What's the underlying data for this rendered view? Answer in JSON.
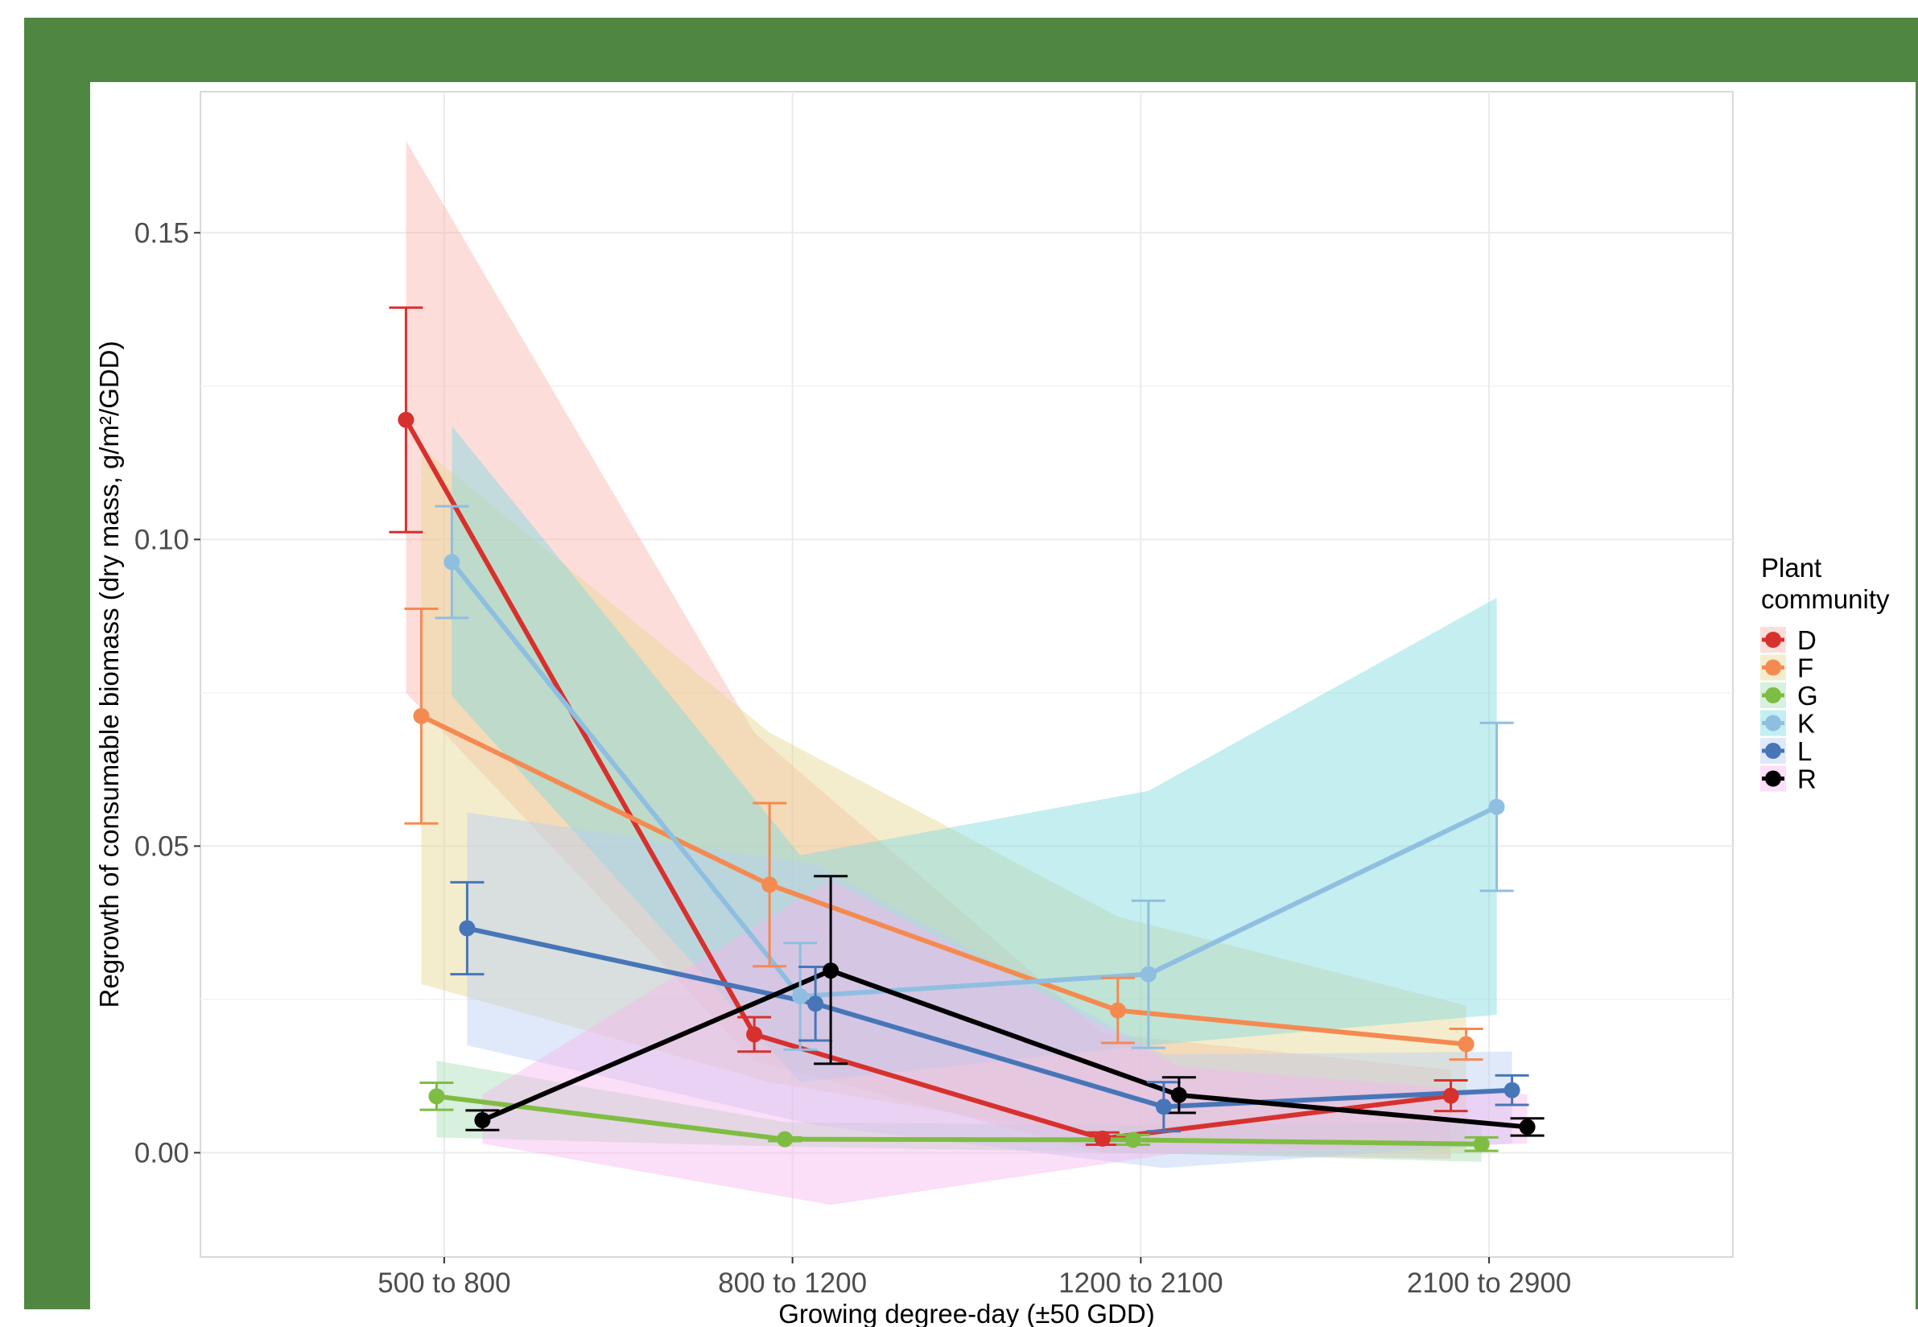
{
  "colors": {
    "frame": "#4f8742",
    "grid": "#ebebeb",
    "text": "#4d4d4d",
    "series": {
      "D": "#d7312e",
      "F": "#f58a51",
      "G": "#7fbd42",
      "K": "#8fbfe0",
      "L": "#4776b8",
      "R": "#000000"
    },
    "bands": {
      "D": "#fbb4ae",
      "F": "#e6d691",
      "G": "#a8ddb5",
      "K": "#7fd9e0",
      "L": "#b8cff5",
      "R": "#f7b6ee"
    }
  },
  "chart_data": {
    "type": "line",
    "xlabel": "Growing degree-day (±50 GDD)",
    "ylabel": "Regrowth of consumable biomass (dry mass, g/m²/GDD)",
    "categories": [
      "500 to 800",
      "800 to 1200",
      "1200 to 2100",
      "2100 to 2900"
    ],
    "ylim": [
      -0.017,
      0.173
    ],
    "yticks": [
      0.0,
      0.05,
      0.1,
      0.15
    ],
    "ytick_labels": [
      "0.00",
      "0.05",
      "0.10",
      "0.15"
    ],
    "grid": true,
    "legend": {
      "title": "Plant community",
      "position": "right"
    },
    "series": [
      {
        "name": "D",
        "values": [
          0.1195,
          0.0193,
          0.0023,
          0.0093
        ],
        "err_low": [
          0.1012,
          0.0165,
          0.0013,
          0.0068
        ],
        "err_high": [
          0.1378,
          0.0221,
          0.0033,
          0.0118
        ],
        "band_low": [
          0.075,
          0.015,
          0.0,
          -0.001
        ],
        "band_high": [
          0.165,
          0.0685,
          0.0195,
          0.0135
        ]
      },
      {
        "name": "F",
        "values": [
          0.0712,
          0.0437,
          0.0232,
          0.0177
        ],
        "err_low": [
          0.0537,
          0.0304,
          0.0179,
          0.0152
        ],
        "err_high": [
          0.0887,
          0.057,
          0.0285,
          0.0202
        ],
        "band_low": [
          0.0275,
          0.0115,
          0.002,
          0.0
        ],
        "band_high": [
          0.115,
          0.0685,
          0.0385,
          0.024
        ]
      },
      {
        "name": "G",
        "values": [
          0.0092,
          0.0022,
          0.0021,
          0.0014
        ],
        "err_low": [
          0.007,
          0.0019,
          0.0013,
          0.0003
        ],
        "err_high": [
          0.0114,
          0.0025,
          0.0029,
          0.0025
        ],
        "band_low": [
          0.0025,
          0.001,
          0.0,
          -0.0015
        ],
        "band_high": [
          0.015,
          0.005,
          0.0045,
          0.005
        ]
      },
      {
        "name": "K",
        "values": [
          0.0963,
          0.0255,
          0.0291,
          0.0564
        ],
        "err_low": [
          0.0872,
          0.0168,
          0.0171,
          0.0427
        ],
        "err_high": [
          0.1054,
          0.0342,
          0.0411,
          0.0701
        ],
        "band_low": [
          0.0745,
          0.0115,
          0.0175,
          0.0225
        ],
        "band_high": [
          0.1185,
          0.0485,
          0.059,
          0.0905
        ]
      },
      {
        "name": "L",
        "values": [
          0.0366,
          0.0243,
          0.0075,
          0.0102
        ],
        "err_low": [
          0.0291,
          0.0183,
          0.0035,
          0.0078
        ],
        "err_high": [
          0.0441,
          0.0303,
          0.0115,
          0.0126
        ],
        "band_low": [
          0.0175,
          0.0045,
          -0.0025,
          0.0015
        ],
        "band_high": [
          0.0555,
          0.047,
          0.016,
          0.0165
        ]
      },
      {
        "name": "R",
        "values": [
          0.0053,
          0.0297,
          0.0094,
          0.0042
        ],
        "err_low": [
          0.0037,
          0.0145,
          0.0065,
          0.0028
        ],
        "err_high": [
          0.0069,
          0.0451,
          0.0123,
          0.0056
        ],
        "band_low": [
          0.0015,
          -0.0085,
          0.0,
          0.0015
        ],
        "band_high": [
          0.0095,
          0.0445,
          0.014,
          0.0095
        ]
      }
    ]
  }
}
